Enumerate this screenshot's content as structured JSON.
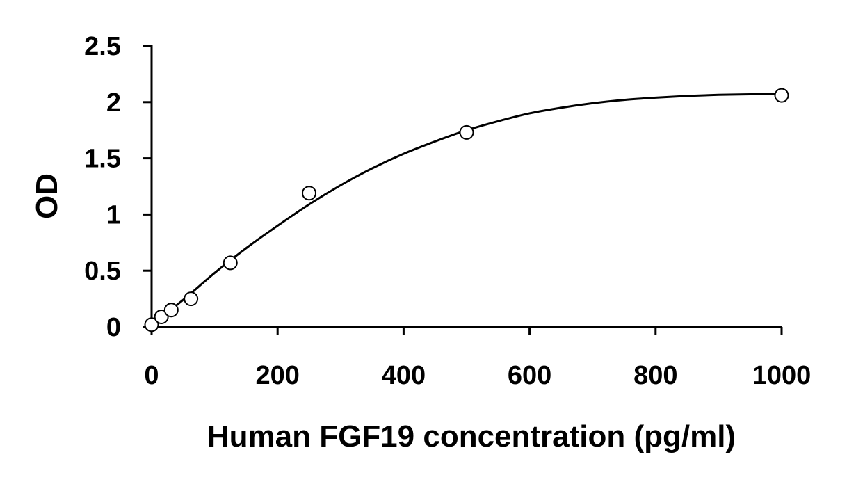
{
  "chart_data": {
    "type": "scatter",
    "title": "",
    "xlabel": "Human FGF19 concentration (pg/ml)",
    "ylabel": "OD",
    "xlim": [
      0,
      1000
    ],
    "ylim": [
      0,
      2.5
    ],
    "xticks": [
      0,
      200,
      400,
      600,
      800,
      1000
    ],
    "yticks": [
      0,
      0.5,
      1,
      1.5,
      2,
      2.5
    ],
    "xtick_labels": [
      "0",
      "200",
      "400",
      "600",
      "800",
      "1000"
    ],
    "ytick_labels": [
      "0",
      "0.5",
      "1",
      "1.5",
      "2",
      "2.5"
    ],
    "grid": false,
    "legend": "none",
    "series": [
      {
        "marker": "open-circle",
        "x": [
          0,
          15.6,
          31.25,
          62.5,
          125,
          250,
          500,
          1000
        ],
        "y": [
          0.02,
          0.09,
          0.15,
          0.25,
          0.57,
          1.19,
          1.73,
          2.06
        ]
      }
    ],
    "fit_curve": {
      "type": "polynomial",
      "x": [
        0,
        50,
        100,
        150,
        200,
        250,
        300,
        350,
        400,
        450,
        500,
        550,
        600,
        650,
        700,
        750,
        800,
        850,
        900,
        950,
        1000
      ],
      "y": [
        0.02,
        0.24,
        0.48,
        0.7,
        0.9,
        1.09,
        1.26,
        1.41,
        1.54,
        1.65,
        1.75,
        1.83,
        1.9,
        1.95,
        1.99,
        2.02,
        2.04,
        2.055,
        2.065,
        2.07,
        2.07
      ]
    },
    "colors": {
      "line": "#000000",
      "marker_fill": "#ffffff"
    }
  }
}
